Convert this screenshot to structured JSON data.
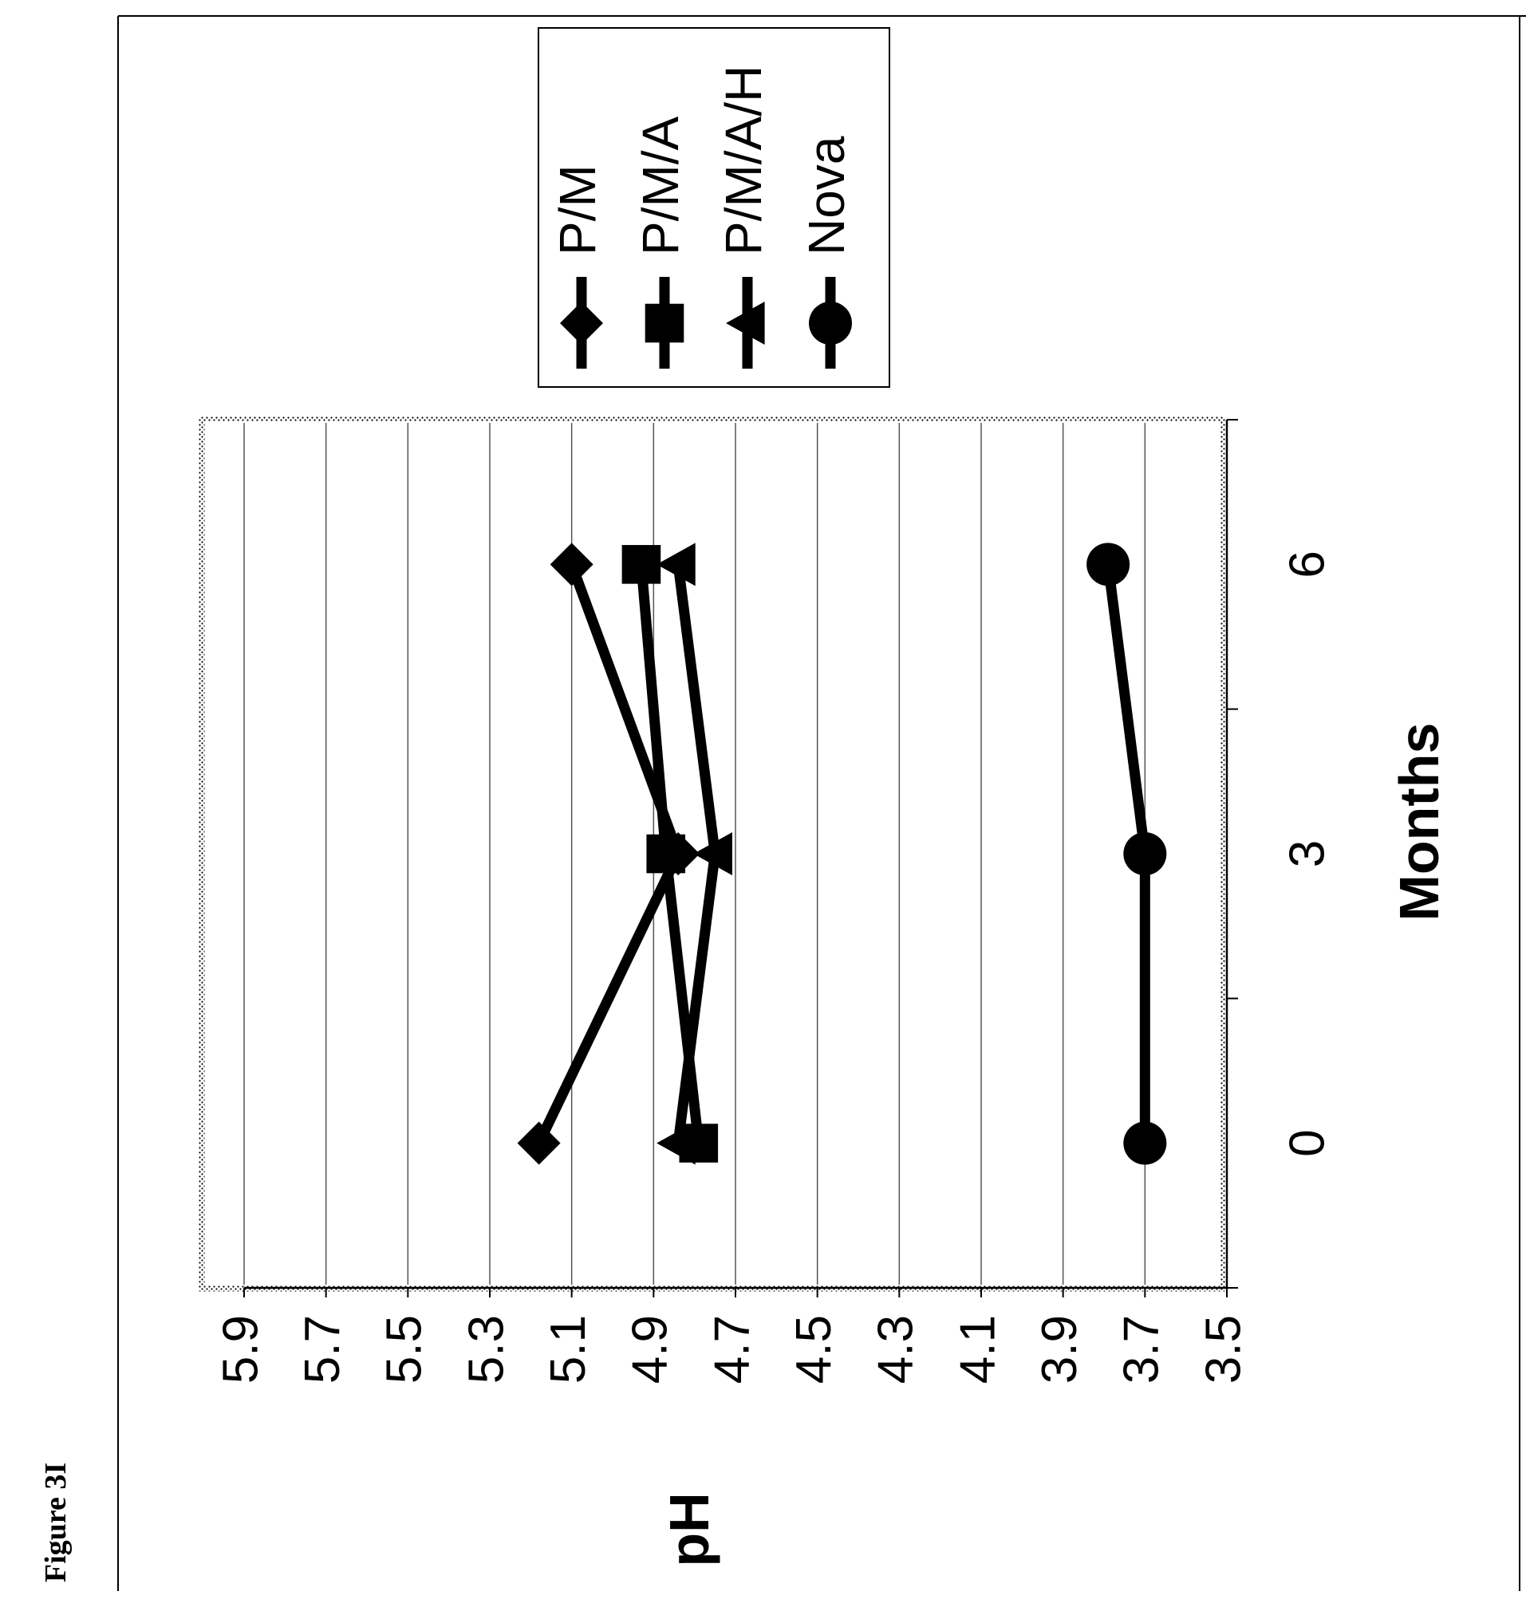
{
  "figure_label": "Figure 3I",
  "chart_data": {
    "type": "line",
    "orientation": "rotated 90° counter-clockwise on page",
    "x": [
      0,
      3,
      6
    ],
    "x_ticks": [
      "0",
      "3",
      "6"
    ],
    "xlabel": "Months",
    "xlim": [
      -1.5,
      7.5
    ],
    "ylabel": "pH",
    "ylim": [
      3.5,
      5.9
    ],
    "y_ticks": [
      "5.9",
      "5.7",
      "5.5",
      "5.3",
      "5.1",
      "4.9",
      "4.7",
      "4.5",
      "4.3",
      "4.1",
      "3.9",
      "3.7",
      "3.5"
    ],
    "grid": true,
    "legend_position": "top-right",
    "series": [
      {
        "name": "P/M",
        "marker": "diamond",
        "values": [
          5.18,
          4.84,
          5.1
        ]
      },
      {
        "name": "P/M/A",
        "marker": "square",
        "values": [
          4.79,
          4.87,
          4.93
        ]
      },
      {
        "name": "P/M/A/H",
        "marker": "triangle",
        "values": [
          4.84,
          4.75,
          4.84
        ]
      },
      {
        "name": "Nova",
        "marker": "circle",
        "values": [
          3.7,
          3.7,
          3.79
        ]
      }
    ],
    "colors": {
      "line": "#000000",
      "grid": "#555555",
      "background": "#ffffff"
    }
  }
}
